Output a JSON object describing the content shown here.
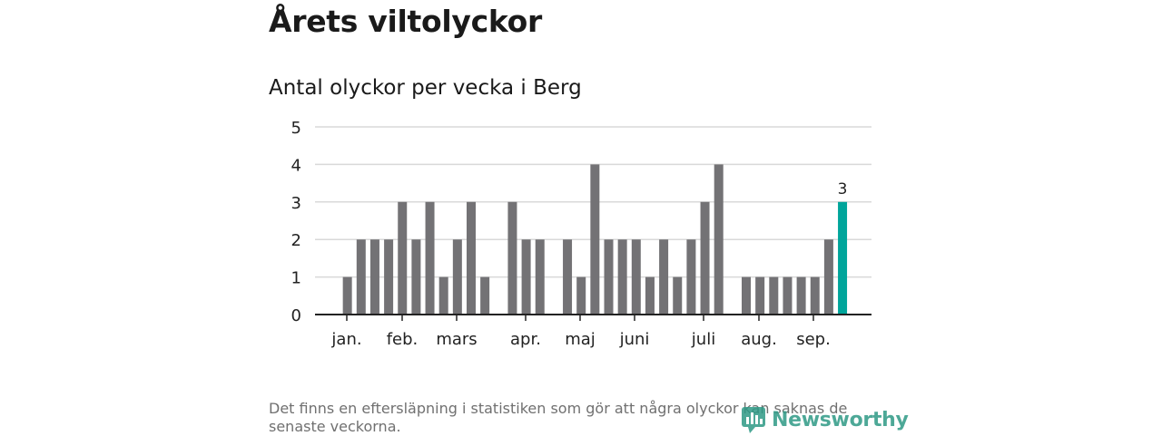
{
  "title": "Årets viltolyckor",
  "subtitle": "Antal olyckor per vecka i Berg",
  "footnote": "Det finns en eftersläpning i statistiken som gör att några olyckor kan saknas de senaste veckorna.",
  "logo_text": "Newsworthy",
  "colors": {
    "bar": "#737275",
    "highlight": "#00a59b",
    "grid": "#d9d9d9",
    "axis": "#222222",
    "logo": "#2e9a86"
  },
  "chart_data": {
    "type": "bar",
    "title": "Antal olyckor per vecka i Berg",
    "xlabel": "",
    "ylabel": "",
    "ylim": [
      0,
      5
    ],
    "yticks": [
      0,
      1,
      2,
      3,
      4,
      5
    ],
    "grid": true,
    "x_tick_labels": [
      "jan.",
      "feb.",
      "mars",
      "apr.",
      "maj",
      "juni",
      "juli",
      "aug.",
      "sep."
    ],
    "values": [
      0,
      1,
      2,
      2,
      2,
      3,
      2,
      3,
      1,
      2,
      3,
      1,
      0,
      3,
      2,
      2,
      0,
      2,
      1,
      4,
      2,
      2,
      2,
      1,
      2,
      1,
      2,
      3,
      4,
      0,
      1,
      1,
      1,
      1,
      1,
      1,
      2,
      3
    ],
    "highlight_index": 37,
    "data_labels": [
      {
        "index": 37,
        "text": "3"
      }
    ]
  }
}
